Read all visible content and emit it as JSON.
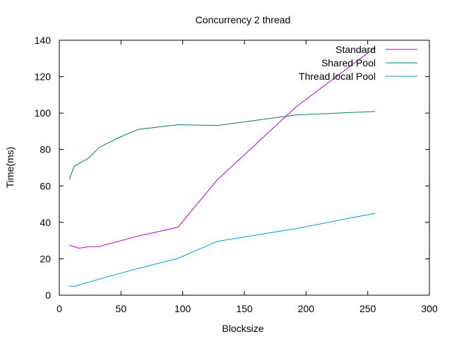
{
  "chart_data": {
    "type": "line",
    "title": "Concurrency 2 thread",
    "xlabel": "Blocksize",
    "ylabel": "Time(ms)",
    "xlim": [
      0,
      300
    ],
    "ylim": [
      0,
      140
    ],
    "x_ticks": [
      "0",
      "50",
      "100",
      "150",
      "200",
      "250",
      "300"
    ],
    "y_ticks": [
      "0",
      "20",
      "40",
      "60",
      "80",
      "100",
      "120",
      "140"
    ],
    "grid": false,
    "legend_position": "top-right",
    "series": [
      {
        "name": "Standard",
        "color": "#c000c0",
        "x": [
          8,
          16,
          24,
          32,
          64,
          96,
          128,
          192,
          256
        ],
        "y": [
          27.5,
          25.8,
          26.7,
          26.7,
          32.5,
          37.3,
          63.3,
          103.5,
          136
        ]
      },
      {
        "name": "Shared Pool",
        "color": "#008060",
        "x": [
          8,
          12,
          16,
          24,
          32,
          48,
          64,
          96,
          128,
          192,
          256
        ],
        "y": [
          63.5,
          70.8,
          72.3,
          75.4,
          81,
          86.5,
          91,
          93.6,
          93.2,
          99,
          100.9
        ]
      },
      {
        "name": "Thread local Pool",
        "color": "#00a0d0",
        "x": [
          8,
          12,
          32,
          64,
          96,
          128,
          192,
          256
        ],
        "y": [
          5.1,
          4.8,
          8.8,
          14.7,
          20.2,
          29.6,
          36.6,
          45
        ]
      }
    ]
  }
}
